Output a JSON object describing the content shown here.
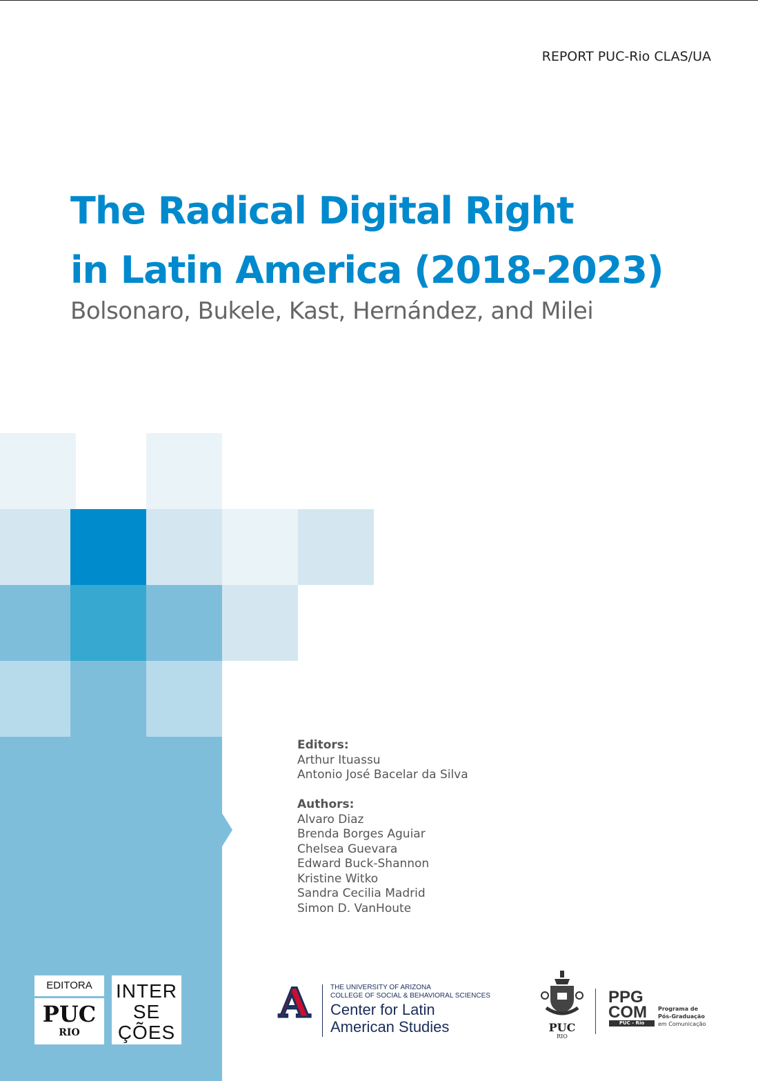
{
  "header": {
    "report_label": "REPORT PUC-Rio CLAS/UA"
  },
  "title": {
    "line1": "The Radical Digital Right",
    "line2": "in Latin America (2018-2023)",
    "subtitle": "Bolsonaro, Bukele, Kast, Hernández, and Milei"
  },
  "colors": {
    "accent": "#0089cd",
    "panel": "#7fbedb",
    "very_light": "#eaf3f7",
    "light": "#d4e7f1",
    "pale": "#b7dbea",
    "teal": "#37a9d1"
  },
  "editors": {
    "label": "Editors:",
    "names": [
      "Arthur Ituassu",
      "Antonio José Bacelar da Silva"
    ]
  },
  "authors": {
    "label": "Authors:",
    "names": [
      "Alvaro Diaz",
      "Brenda Borges Aguiar",
      "Chelsea Guevara",
      "Edward Buck-Shannon",
      "Kristine Witko",
      "Sandra Cecilia Madrid",
      "Simon D. VanHoute"
    ]
  },
  "logos": {
    "editora": {
      "top": "EDITORA",
      "main": "PUC",
      "sub": "RIO"
    },
    "intersecoes": {
      "l1": "INTER",
      "l2": "SE",
      "l3": "ÇÕES"
    },
    "ua": {
      "mark": "A",
      "line1": "THE UNIVERSITY OF ARIZONA",
      "line2": "COLLEGE OF SOCIAL & BEHAVIORAL SCIENCES",
      "line3": "Center for Latin",
      "line4": "American Studies"
    },
    "puc_seal": {
      "main": "PUC",
      "sub": "RIO"
    },
    "ppgcom": {
      "l1": "PPG",
      "l2": "COM",
      "bar": "PUC - Rio",
      "t1": "Programa de",
      "t2": "Pós-Graduação",
      "t3": "em Comunicação"
    }
  }
}
